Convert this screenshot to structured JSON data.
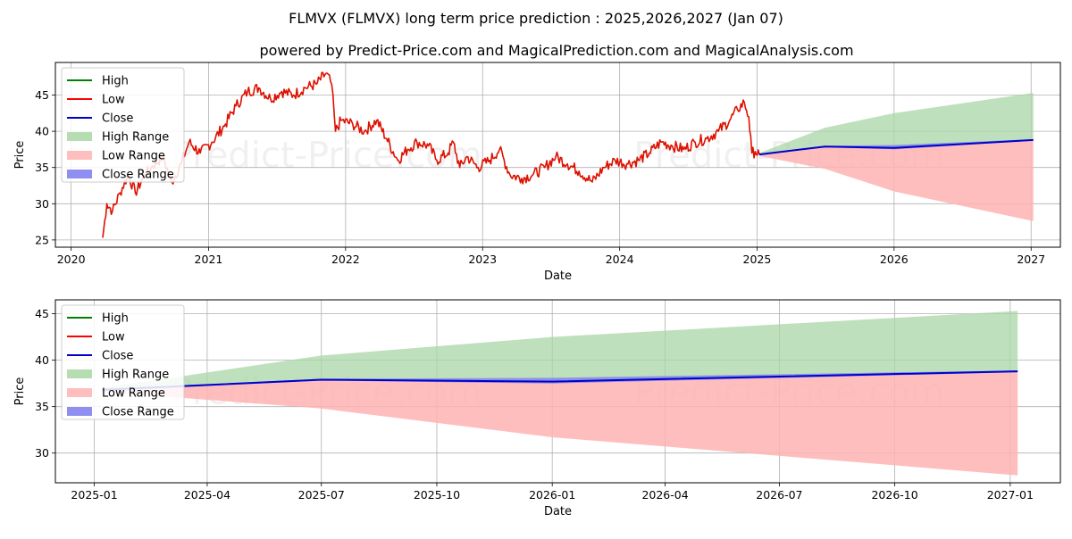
{
  "title": "FLMVX (FLMVX) long term price prediction : 2025,2026,2027 (Jan 07)",
  "subtitle": "powered by Predict-Price.com and MagicalPrediction.com and MagicalAnalysis.com",
  "watermark": "Predict-Price.com",
  "colors": {
    "high": "#008000",
    "low": "#ff0000",
    "close": "#0000cc",
    "high_range": "#a9d6a5",
    "low_range": "#ffb3b3",
    "close_range": "#7b7bf0",
    "history": "#dd1100"
  },
  "chart_data": [
    {
      "type": "line",
      "xlabel": "Date",
      "ylabel": "Price",
      "xlim": [
        "2019-11-20",
        "2027-03-20"
      ],
      "ylim": [
        24,
        49.5
      ],
      "xticks": [
        "2020",
        "2021",
        "2022",
        "2023",
        "2024",
        "2025",
        "2026",
        "2027"
      ],
      "yticks": [
        25,
        30,
        35,
        40,
        45
      ],
      "grid": true,
      "legend_position": "top-left",
      "legend": [
        "High",
        "Low",
        "Close",
        "High Range",
        "Low Range",
        "Close Range"
      ],
      "history": {
        "name": "Low",
        "points": [
          [
            "2020-03-25",
            25.3
          ],
          [
            "2020-04-05",
            30.0
          ],
          [
            "2020-04-20",
            29.0
          ],
          [
            "2020-05-10",
            31.5
          ],
          [
            "2020-06-01",
            34.0
          ],
          [
            "2020-06-20",
            31.5
          ],
          [
            "2020-07-10",
            33.5
          ],
          [
            "2020-08-01",
            35.0
          ],
          [
            "2020-09-01",
            36.5
          ],
          [
            "2020-09-25",
            33.0
          ],
          [
            "2020-10-20",
            35.5
          ],
          [
            "2020-11-10",
            38.5
          ],
          [
            "2020-12-10",
            37.0
          ],
          [
            "2021-01-10",
            38.5
          ],
          [
            "2021-02-15",
            41.0
          ],
          [
            "2021-03-15",
            43.5
          ],
          [
            "2021-04-15",
            45.5
          ],
          [
            "2021-05-15",
            46.0
          ],
          [
            "2021-06-15",
            44.5
          ],
          [
            "2021-07-15",
            45.5
          ],
          [
            "2021-08-15",
            45.0
          ],
          [
            "2021-09-15",
            46.0
          ],
          [
            "2021-10-15",
            46.5
          ],
          [
            "2021-11-10",
            48.0
          ],
          [
            "2021-11-25",
            46.5
          ],
          [
            "2021-12-05",
            40.0
          ],
          [
            "2021-12-20",
            41.5
          ],
          [
            "2022-01-20",
            41.0
          ],
          [
            "2022-02-20",
            40.0
          ],
          [
            "2022-03-25",
            41.5
          ],
          [
            "2022-04-20",
            39.0
          ],
          [
            "2022-05-20",
            36.0
          ],
          [
            "2022-06-15",
            37.5
          ],
          [
            "2022-07-10",
            38.5
          ],
          [
            "2022-08-10",
            38.0
          ],
          [
            "2022-09-01",
            36.0
          ],
          [
            "2022-10-01",
            37.0
          ],
          [
            "2022-10-15",
            38.5
          ],
          [
            "2022-11-01",
            35.0
          ],
          [
            "2022-11-20",
            36.5
          ],
          [
            "2022-12-20",
            35.0
          ],
          [
            "2023-01-20",
            36.0
          ],
          [
            "2023-02-15",
            37.5
          ],
          [
            "2023-03-15",
            34.0
          ],
          [
            "2023-04-15",
            33.5
          ],
          [
            "2023-05-15",
            34.0
          ],
          [
            "2023-06-15",
            35.0
          ],
          [
            "2023-07-15",
            36.5
          ],
          [
            "2023-08-15",
            35.5
          ],
          [
            "2023-09-15",
            34.5
          ],
          [
            "2023-10-20",
            33.0
          ],
          [
            "2023-11-20",
            35.0
          ],
          [
            "2023-12-20",
            36.0
          ],
          [
            "2024-01-20",
            35.5
          ],
          [
            "2024-02-20",
            36.0
          ],
          [
            "2024-03-20",
            37.0
          ],
          [
            "2024-04-20",
            38.5
          ],
          [
            "2024-05-20",
            38.0
          ],
          [
            "2024-06-20",
            37.5
          ],
          [
            "2024-07-20",
            38.5
          ],
          [
            "2024-08-20",
            39.0
          ],
          [
            "2024-09-20",
            40.0
          ],
          [
            "2024-10-20",
            41.5
          ],
          [
            "2024-11-10",
            43.0
          ],
          [
            "2024-11-28",
            44.0
          ],
          [
            "2024-12-10",
            42.0
          ],
          [
            "2024-12-18",
            37.0
          ],
          [
            "2024-12-27",
            37.2
          ],
          [
            "2025-01-07",
            36.8
          ]
        ]
      },
      "forecast": {
        "dates": [
          "2025-01-07",
          "2025-07-01",
          "2026-01-01",
          "2027-01-07"
        ],
        "high_range": [
          37.0,
          40.5,
          42.5,
          45.3
        ],
        "low_range": [
          36.6,
          34.8,
          31.7,
          27.6
        ],
        "close": [
          36.8,
          37.9,
          37.7,
          38.8
        ],
        "close_range_upper": [
          36.9,
          38.0,
          38.1,
          38.9
        ],
        "close_range_lower": [
          36.7,
          37.8,
          37.5,
          38.7
        ]
      }
    },
    {
      "type": "line",
      "xlabel": "Date",
      "ylabel": "Price",
      "xlim": [
        "2024-12-01",
        "2027-02-10"
      ],
      "ylim": [
        26.8,
        46.5
      ],
      "xticks": [
        "2025-01",
        "2025-04",
        "2025-07",
        "2025-10",
        "2026-01",
        "2026-04",
        "2026-07",
        "2026-10",
        "2027-01"
      ],
      "yticks": [
        30,
        35,
        40,
        45
      ],
      "grid": true,
      "legend_position": "top-left",
      "legend": [
        "High",
        "Low",
        "Close",
        "High Range",
        "Low Range",
        "Close Range"
      ],
      "forecast": {
        "dates": [
          "2025-01-07",
          "2025-07-01",
          "2026-01-01",
          "2027-01-07"
        ],
        "high_range": [
          37.0,
          40.5,
          42.5,
          45.3
        ],
        "low_range": [
          36.6,
          34.8,
          31.7,
          27.6
        ],
        "close": [
          36.8,
          37.9,
          37.7,
          38.8
        ],
        "close_range_upper": [
          36.9,
          38.0,
          38.1,
          38.9
        ],
        "close_range_lower": [
          36.7,
          37.8,
          37.5,
          38.7
        ]
      }
    }
  ]
}
